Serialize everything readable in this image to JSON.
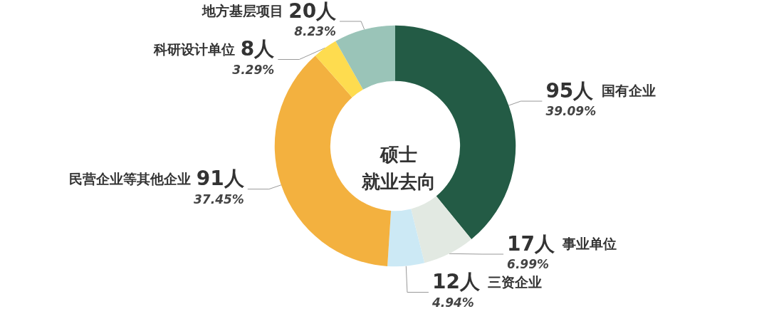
{
  "chart_data": {
    "type": "donut",
    "title": "硕士",
    "subtitle": "就业去向",
    "categories": [
      "国有企业",
      "事业单位",
      "三资企业",
      "民营企业等其他企业",
      "科研设计单位",
      "地方基层项目"
    ],
    "values": [
      95,
      17,
      12,
      91,
      8,
      20
    ],
    "value_labels": [
      "95人",
      "17人",
      "12人",
      "91人",
      "8人",
      "20人"
    ],
    "colors": [
      "#235b45",
      "#e2e9e2",
      "#cce9f5",
      "#f3b13f",
      "#fedc4f",
      "#9ac4b8"
    ],
    "annotations": [
      {
        "text": "39.09%",
        "x": "国有企业"
      },
      {
        "text": "6.99%",
        "x": "事业单位"
      },
      {
        "text": "4.94%",
        "x": "三资企业"
      },
      {
        "text": "37.45%",
        "x": "民营企业等其他企业"
      },
      {
        "text": "3.29%",
        "x": "科研设计单位"
      },
      {
        "text": "8.23%",
        "x": "地方基层项目"
      }
    ],
    "legend": false
  }
}
